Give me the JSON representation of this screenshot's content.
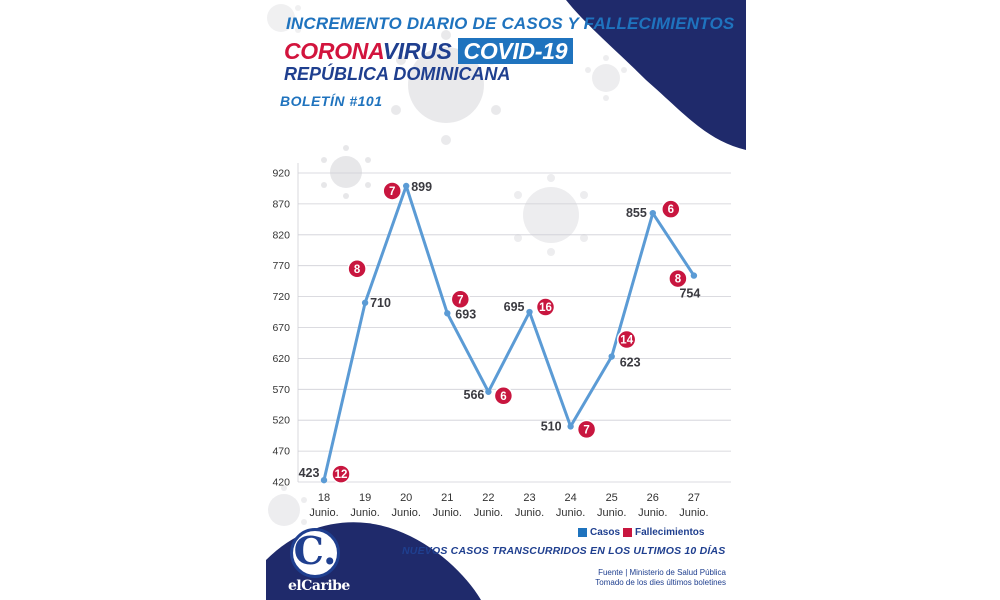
{
  "header": {
    "line1": "INCREMENTO DIARIO DE CASOS Y FALLECIMIENTOS",
    "corona": "CORONA",
    "virus": "VIRUS",
    "covid": "COVID-19",
    "country": "REPÚBLICA DOMINICANA",
    "bulletin": "BOLETÍN #101"
  },
  "colors": {
    "navy": "#1f2a6b",
    "blue": "#1f73be",
    "line": "#5b9bd5",
    "red": "#c8163f"
  },
  "chart_data": {
    "type": "line",
    "categories": [
      "18 Junio.",
      "19 Junio.",
      "20 Junio.",
      "21 Junio.",
      "22 Junio.",
      "23 Junio.",
      "24 Junio.",
      "25 Junio.",
      "26 Junio.",
      "27 Junio."
    ],
    "day_labels": [
      "18",
      "19",
      "20",
      "21",
      "22",
      "23",
      "24",
      "25",
      "26",
      "27"
    ],
    "month_label": "Junio.",
    "series": [
      {
        "name": "Casos",
        "values": [
          423,
          710,
          899,
          693,
          566,
          695,
          510,
          623,
          855,
          754
        ]
      },
      {
        "name": "Fallecimientos",
        "values": [
          12,
          8,
          7,
          7,
          6,
          16,
          7,
          14,
          6,
          8
        ]
      }
    ],
    "y_ticks": [
      420,
      470,
      520,
      570,
      620,
      670,
      720,
      770,
      820,
      870,
      920
    ],
    "ylim": [
      420,
      920
    ],
    "grid": true,
    "legend": "bottom-right"
  },
  "legend": {
    "cases": "Casos",
    "deaths": "Fallecimientos"
  },
  "footer": {
    "title": "NUEVOS CASOS TRANSCURRIDOS EN LOS ULTIMOS 10 DÍAS",
    "source1": "Fuente | Ministerio de Salud Pública",
    "source2": "Tomado de  los dies últimos boletines",
    "logo_letter": "C.",
    "logo_text": "elCaribe"
  }
}
